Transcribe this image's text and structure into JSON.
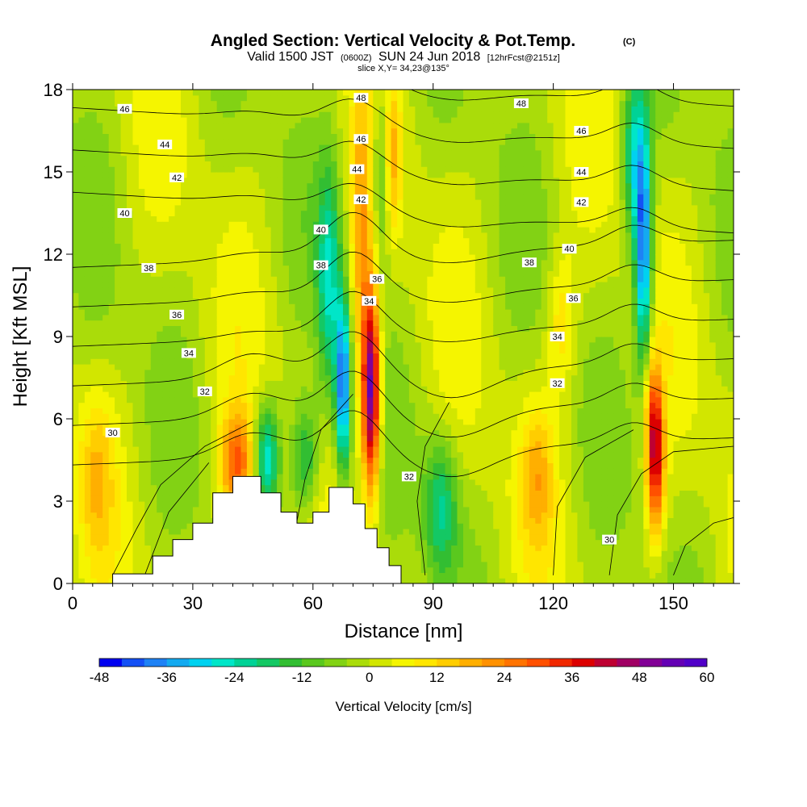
{
  "chart_data": {
    "type": "heatmap",
    "title": "Angled Section: Vertical Velocity & Pot.Temp.",
    "title_units": "(C)",
    "subtitle_prefix": "Valid 1500 JST",
    "subtitle_utc": "(0600Z)",
    "subtitle_date": "SUN 24 Jun 2018",
    "subtitle_fcst": "[12hrFcst@2151z]",
    "slice_label": "slice X,Y= 34,23@135°",
    "xlabel": "Distance [nm]",
    "ylabel": "Height [Kft MSL]",
    "xlim": [
      0,
      165
    ],
    "ylim": [
      0,
      18
    ],
    "x_ticks": [
      0,
      30,
      60,
      90,
      120,
      150
    ],
    "y_ticks": [
      0,
      3,
      6,
      9,
      12,
      15,
      18
    ],
    "colorbar": {
      "label": "Vertical Velocity [cm/s]",
      "min": -48,
      "max": 60,
      "step": 4,
      "ticks": [
        -48,
        -36,
        -24,
        -12,
        0,
        12,
        24,
        36,
        48,
        60
      ],
      "colors": [
        "#0000f0",
        "#1450f5",
        "#1e82f5",
        "#14aaf0",
        "#00d2f0",
        "#00e6c8",
        "#00d296",
        "#14c864",
        "#32be32",
        "#5ac81e",
        "#82d214",
        "#aadc0a",
        "#d2e600",
        "#f5f500",
        "#ffe600",
        "#ffcd00",
        "#ffaf00",
        "#ff9100",
        "#ff7300",
        "#ff5000",
        "#f02800",
        "#dc0000",
        "#be0032",
        "#a00064",
        "#820096",
        "#6400b4",
        "#5000c8"
      ]
    },
    "features": [
      {
        "type": "updraft",
        "center_x": 74,
        "center_height": 7.0,
        "peak": 56
      },
      {
        "type": "downdraft",
        "center_x": 68,
        "center_height": 7.5,
        "peak": -40
      },
      {
        "type": "updraft",
        "center_x": 146,
        "center_height": 4.0,
        "peak": 36
      },
      {
        "type": "downdraft",
        "center_x": 143,
        "center_height": 12.0,
        "peak": -40
      },
      {
        "type": "updraft",
        "center_x": 42,
        "center_height": 4.0,
        "peak": 28
      },
      {
        "type": "downdraft",
        "center_x": 48,
        "center_height": 4.5,
        "peak": -28
      }
    ],
    "terrain": [
      [
        0,
        0
      ],
      [
        10,
        0
      ],
      [
        10,
        0.35
      ],
      [
        20,
        0.35
      ],
      [
        20,
        1
      ],
      [
        25,
        1
      ],
      [
        25,
        1.6
      ],
      [
        30,
        1.6
      ],
      [
        30,
        2.2
      ],
      [
        35,
        2.2
      ],
      [
        35,
        3.3
      ],
      [
        40,
        3.3
      ],
      [
        40,
        3.9
      ],
      [
        47,
        3.9
      ],
      [
        47,
        3.3
      ],
      [
        52,
        3.3
      ],
      [
        52,
        2.6
      ],
      [
        56,
        2.6
      ],
      [
        56,
        2.2
      ],
      [
        60,
        2.2
      ],
      [
        60,
        2.6
      ],
      [
        64,
        2.6
      ],
      [
        64,
        3.5
      ],
      [
        70,
        3.5
      ],
      [
        70,
        2.9
      ],
      [
        73,
        2.9
      ],
      [
        73,
        2.0
      ],
      [
        76,
        2.0
      ],
      [
        76,
        1.3
      ],
      [
        79,
        1.3
      ],
      [
        79,
        0.65
      ],
      [
        82,
        0.65
      ],
      [
        82,
        0
      ],
      [
        165,
        0
      ]
    ],
    "contour_levels": [
      30,
      32,
      34,
      36,
      38,
      40,
      42,
      44,
      46,
      48
    ],
    "contour_labels": [
      {
        "text": "46",
        "x": 13,
        "y": 17.3
      },
      {
        "text": "44",
        "x": 23,
        "y": 16.0
      },
      {
        "text": "42",
        "x": 26,
        "y": 14.8
      },
      {
        "text": "40",
        "x": 13,
        "y": 13.5
      },
      {
        "text": "38",
        "x": 19,
        "y": 11.5
      },
      {
        "text": "36",
        "x": 26,
        "y": 9.8
      },
      {
        "text": "34",
        "x": 29,
        "y": 8.4
      },
      {
        "text": "32",
        "x": 33,
        "y": 7.0
      },
      {
        "text": "30",
        "x": 10,
        "y": 5.5
      },
      {
        "text": "48",
        "x": 72,
        "y": 17.7
      },
      {
        "text": "46",
        "x": 72,
        "y": 16.2
      },
      {
        "text": "44",
        "x": 71,
        "y": 15.1
      },
      {
        "text": "42",
        "x": 72,
        "y": 14.0
      },
      {
        "text": "40",
        "x": 62,
        "y": 12.9
      },
      {
        "text": "38",
        "x": 62,
        "y": 11.6
      },
      {
        "text": "36",
        "x": 76,
        "y": 11.1
      },
      {
        "text": "34",
        "x": 74,
        "y": 10.3
      },
      {
        "text": "32",
        "x": 84,
        "y": 3.9
      },
      {
        "text": "48",
        "x": 112,
        "y": 17.5
      },
      {
        "text": "46",
        "x": 127,
        "y": 16.5
      },
      {
        "text": "44",
        "x": 127,
        "y": 15.0
      },
      {
        "text": "42",
        "x": 127,
        "y": 13.9
      },
      {
        "text": "40",
        "x": 124,
        "y": 12.2
      },
      {
        "text": "38",
        "x": 114,
        "y": 11.7
      },
      {
        "text": "36",
        "x": 125,
        "y": 10.4
      },
      {
        "text": "34",
        "x": 121,
        "y": 9.0
      },
      {
        "text": "32",
        "x": 121,
        "y": 7.3
      },
      {
        "text": "30",
        "x": 134,
        "y": 1.6
      }
    ]
  }
}
